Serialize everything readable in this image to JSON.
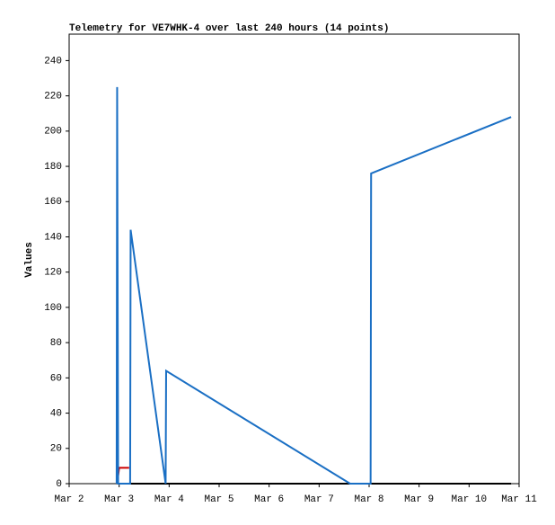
{
  "chart_data": {
    "type": "line",
    "title": "Telemetry for VE7WHK-4 over last 240 hours (14 points)",
    "y_label": "Values",
    "xlim": [
      2,
      11
    ],
    "xticks": [
      {
        "value": 2,
        "label": "Mar 2"
      },
      {
        "value": 3,
        "label": "Mar 3"
      },
      {
        "value": 4,
        "label": "Mar 4"
      },
      {
        "value": 5,
        "label": "Mar 5"
      },
      {
        "value": 6,
        "label": "Mar 6"
      },
      {
        "value": 7,
        "label": "Mar 7"
      },
      {
        "value": 8,
        "label": "Mar 8"
      },
      {
        "value": 9,
        "label": "Mar 9"
      },
      {
        "value": 10,
        "label": "Mar 10"
      },
      {
        "value": 11,
        "label": "Mar 11"
      }
    ],
    "ylim": [
      0,
      255
    ],
    "yticks": [
      0,
      20,
      40,
      60,
      80,
      100,
      120,
      140,
      160,
      180,
      200,
      220,
      240
    ],
    "series": [
      {
        "color": "#000000",
        "x": [
          2.96,
          10.84
        ],
        "values": [
          0,
          0
        ]
      },
      {
        "color": "#cc0000",
        "x": [
          2.96,
          3.0,
          3.2
        ],
        "values": [
          0,
          9,
          9
        ]
      },
      {
        "color": "#1a6fc4",
        "x": [
          2.95,
          2.96,
          2.98,
          3.22,
          3.23,
          3.93,
          3.94,
          7.62,
          8.03,
          8.04,
          10.84
        ],
        "values": [
          0,
          225,
          0,
          0,
          144,
          0,
          64,
          0,
          0,
          176,
          208
        ]
      }
    ]
  }
}
